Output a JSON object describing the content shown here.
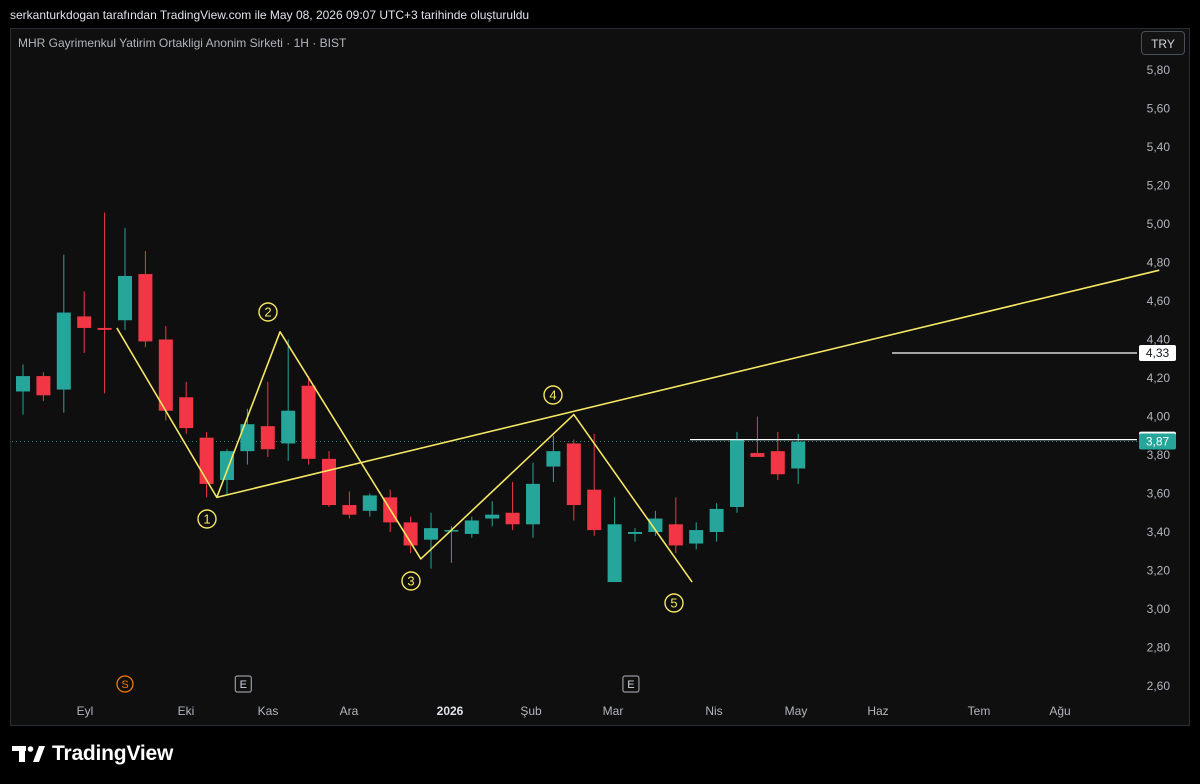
{
  "header": {
    "attribution": "serkanturkdogan tarafından TradingView.com ile May 08, 2026 09:07 UTC+3 tarihinde oluşturuldu"
  },
  "symbol": {
    "title": "MHR Gayrimenkul Yatirim Ortakligi Anonim Sirketi · 1H · BIST",
    "currency": "TRY"
  },
  "brand": {
    "name": "TradingView"
  },
  "colors": {
    "up": "#26a69a",
    "down": "#f23645",
    "pattern": "#f5e663",
    "axis_text": "#b2b5be",
    "price_tag": "#26a69a"
  },
  "chart_data": {
    "type": "candlestick",
    "y_ticks": [
      "5,80",
      "5,60",
      "5,40",
      "5,20",
      "5,00",
      "4,80",
      "4,60",
      "4,40",
      "4,20",
      "4,00",
      "3,80",
      "3,60",
      "3,40",
      "3,20",
      "3,00",
      "2,80",
      "2,60"
    ],
    "y_range": [
      2.52,
      5.92
    ],
    "x_labels": [
      "Eyl",
      "Eki",
      "Kas",
      "Ara",
      "2026",
      "Şub",
      "Mar",
      "Nis",
      "May",
      "Haz",
      "Tem",
      "Ağu"
    ],
    "candles": [
      {
        "o": 4.13,
        "h": 4.27,
        "l": 4.01,
        "c": 4.21
      },
      {
        "o": 4.21,
        "h": 4.23,
        "l": 4.08,
        "c": 4.11
      },
      {
        "o": 4.14,
        "h": 4.84,
        "l": 4.02,
        "c": 4.54
      },
      {
        "o": 4.52,
        "h": 4.65,
        "l": 4.33,
        "c": 4.46
      },
      {
        "o": 4.46,
        "h": 5.06,
        "l": 4.12,
        "c": 4.45
      },
      {
        "o": 4.5,
        "h": 4.98,
        "l": 4.45,
        "c": 4.73
      },
      {
        "o": 4.74,
        "h": 4.86,
        "l": 4.36,
        "c": 4.39
      },
      {
        "o": 4.4,
        "h": 4.47,
        "l": 3.98,
        "c": 4.03
      },
      {
        "o": 4.1,
        "h": 4.18,
        "l": 3.91,
        "c": 3.94
      },
      {
        "o": 3.89,
        "h": 3.92,
        "l": 3.58,
        "c": 3.65
      },
      {
        "o": 3.67,
        "h": 3.83,
        "l": 3.59,
        "c": 3.82
      },
      {
        "o": 3.82,
        "h": 4.04,
        "l": 3.75,
        "c": 3.96
      },
      {
        "o": 3.95,
        "h": 4.18,
        "l": 3.79,
        "c": 3.83
      },
      {
        "o": 3.86,
        "h": 4.4,
        "l": 3.77,
        "c": 4.03
      },
      {
        "o": 4.16,
        "h": 4.21,
        "l": 3.75,
        "c": 3.78
      },
      {
        "o": 3.78,
        "h": 3.82,
        "l": 3.53,
        "c": 3.54
      },
      {
        "o": 3.54,
        "h": 3.61,
        "l": 3.47,
        "c": 3.49
      },
      {
        "o": 3.51,
        "h": 3.6,
        "l": 3.48,
        "c": 3.59
      },
      {
        "o": 3.58,
        "h": 3.62,
        "l": 3.4,
        "c": 3.45
      },
      {
        "o": 3.45,
        "h": 3.48,
        "l": 3.29,
        "c": 3.33
      },
      {
        "o": 3.36,
        "h": 3.5,
        "l": 3.21,
        "c": 3.42
      },
      {
        "o": 3.41,
        "h": 3.43,
        "l": 3.24,
        "c": 3.41
      },
      {
        "o": 3.39,
        "h": 3.48,
        "l": 3.37,
        "c": 3.46
      },
      {
        "o": 3.47,
        "h": 3.56,
        "l": 3.43,
        "c": 3.49
      },
      {
        "o": 3.5,
        "h": 3.66,
        "l": 3.41,
        "c": 3.44
      },
      {
        "o": 3.44,
        "h": 3.76,
        "l": 3.37,
        "c": 3.65
      },
      {
        "o": 3.74,
        "h": 3.9,
        "l": 3.66,
        "c": 3.82
      },
      {
        "o": 3.86,
        "h": 3.88,
        "l": 3.46,
        "c": 3.54
      },
      {
        "o": 3.62,
        "h": 3.91,
        "l": 3.38,
        "c": 3.41
      },
      {
        "o": 3.14,
        "h": 3.58,
        "l": 3.14,
        "c": 3.44
      },
      {
        "o": 3.39,
        "h": 3.42,
        "l": 3.35,
        "c": 3.4
      },
      {
        "o": 3.4,
        "h": 3.51,
        "l": 3.38,
        "c": 3.47
      },
      {
        "o": 3.44,
        "h": 3.58,
        "l": 3.29,
        "c": 3.33
      },
      {
        "o": 3.34,
        "h": 3.45,
        "l": 3.31,
        "c": 3.41
      },
      {
        "o": 3.4,
        "h": 3.55,
        "l": 3.35,
        "c": 3.52
      },
      {
        "o": 3.53,
        "h": 3.92,
        "l": 3.5,
        "c": 3.88
      },
      {
        "o": 3.81,
        "h": 4.0,
        "l": 3.79,
        "c": 3.79
      },
      {
        "o": 3.82,
        "h": 3.92,
        "l": 3.67,
        "c": 3.7
      },
      {
        "o": 3.73,
        "h": 3.91,
        "l": 3.65,
        "c": 3.87
      }
    ],
    "wave_labels": [
      "1",
      "2",
      "3",
      "4",
      "5"
    ],
    "wave_points": [
      {
        "candle": 4.6,
        "y": 4.46
      },
      {
        "candle": 9.5,
        "y": 3.58
      },
      {
        "candle": 12.6,
        "y": 4.44
      },
      {
        "candle": 19.5,
        "y": 3.26
      },
      {
        "candle": 27.0,
        "y": 4.01
      },
      {
        "candle": 32.8,
        "y": 3.14
      }
    ],
    "trendline": [
      {
        "candle": 9.5,
        "y": 3.58
      },
      {
        "candle": 55.7,
        "y": 4.76
      }
    ],
    "horizontal_lines": [
      {
        "value": 4.33,
        "label": "4,33",
        "start_candle": 42.6
      },
      {
        "value": 3.88,
        "label": "3,88",
        "start_candle": 32.7
      }
    ],
    "last_price": {
      "value": 3.87,
      "label": "3,87"
    },
    "event_markers": [
      {
        "letter": "S",
        "candle": 5.0,
        "style": "circle"
      },
      {
        "letter": "E",
        "candle": 10.8,
        "style": "box"
      },
      {
        "letter": "E",
        "candle": 29.8,
        "style": "box"
      }
    ]
  }
}
